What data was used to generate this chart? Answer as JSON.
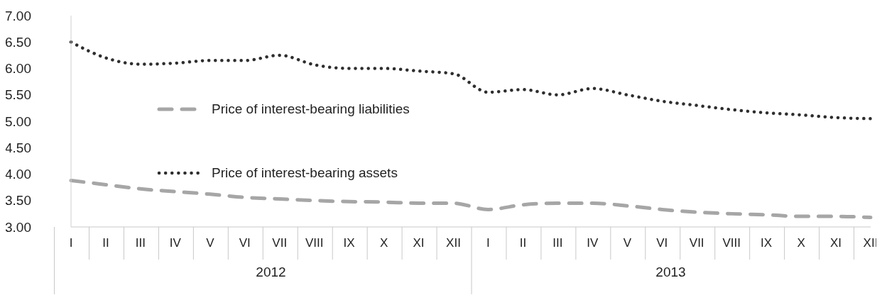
{
  "chart_data": {
    "type": "line",
    "categories": [
      "I",
      "II",
      "III",
      "IV",
      "V",
      "VI",
      "VII",
      "VIII",
      "IX",
      "X",
      "XI",
      "XII",
      "I",
      "II",
      "III",
      "IV",
      "V",
      "VI",
      "VII",
      "VIII",
      "IX",
      "X",
      "XI",
      "XII"
    ],
    "series": [
      {
        "name": "Price of interest-bearing liabilities",
        "color": "#a6a6a6",
        "line_style": "dashed",
        "values": [
          3.88,
          3.8,
          3.72,
          3.67,
          3.62,
          3.56,
          3.53,
          3.5,
          3.48,
          3.47,
          3.45,
          3.45,
          3.33,
          3.42,
          3.45,
          3.45,
          3.4,
          3.33,
          3.28,
          3.25,
          3.23,
          3.2,
          3.2,
          3.18
        ]
      },
      {
        "name": "Price of interest-bearing assets",
        "color": "#2e2e2e",
        "line_style": "dotted",
        "values": [
          6.5,
          6.2,
          6.08,
          6.1,
          6.15,
          6.15,
          6.25,
          6.07,
          6.0,
          6.0,
          5.95,
          5.9,
          5.55,
          5.6,
          5.5,
          5.62,
          5.5,
          5.38,
          5.3,
          5.22,
          5.16,
          5.12,
          5.07,
          5.05
        ]
      }
    ],
    "ylim": [
      3,
      7
    ],
    "yticks": [
      {
        "value": 3,
        "label": "3.00"
      },
      {
        "value": 3.5,
        "label": "3.50"
      },
      {
        "value": 4,
        "label": "4.00"
      },
      {
        "value": 4.5,
        "label": "4.50"
      },
      {
        "value": 5,
        "label": "5.00"
      },
      {
        "value": 5.5,
        "label": "5.50"
      },
      {
        "value": 6,
        "label": "6.00"
      },
      {
        "value": 6.5,
        "label": "6.50"
      },
      {
        "value": 7,
        "label": "7.00"
      }
    ],
    "annotations": [
      "2012",
      "2013"
    ],
    "grid": false,
    "legend": "left",
    "marker": "none"
  }
}
